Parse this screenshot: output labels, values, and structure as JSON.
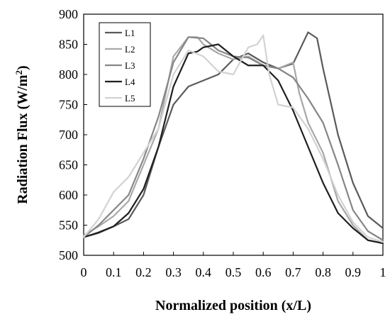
{
  "chart_data": {
    "type": "line",
    "title": "",
    "xlabel": "Normalized position (x/L)",
    "ylabel": "Radiation Flux (W/m²)",
    "ylabel_main": "Radiation Flux (W/m",
    "ylabel_sup": "2",
    "ylabel_close": ")",
    "xlim": [
      0,
      1
    ],
    "ylim": [
      500,
      900
    ],
    "x_ticks": [
      "0",
      "0.1",
      "0.2",
      "0.3",
      "0.4",
      "0.5",
      "0.6",
      "0.7",
      "0.8",
      "0.9",
      "1"
    ],
    "y_ticks": [
      "500",
      "550",
      "600",
      "650",
      "700",
      "750",
      "800",
      "850",
      "900"
    ],
    "grid": false,
    "legend_position": "top-left",
    "series": [
      {
        "name": "L1",
        "color": "#5a5a5a",
        "points": [
          [
            0,
            530
          ],
          [
            0.05,
            537
          ],
          [
            0.1,
            548
          ],
          [
            0.15,
            560
          ],
          [
            0.2,
            600
          ],
          [
            0.25,
            680
          ],
          [
            0.3,
            750
          ],
          [
            0.35,
            780
          ],
          [
            0.4,
            790
          ],
          [
            0.45,
            800
          ],
          [
            0.5,
            825
          ],
          [
            0.55,
            835
          ],
          [
            0.6,
            820
          ],
          [
            0.65,
            810
          ],
          [
            0.7,
            818
          ],
          [
            0.75,
            870
          ],
          [
            0.78,
            860
          ],
          [
            0.8,
            810
          ],
          [
            0.85,
            700
          ],
          [
            0.9,
            620
          ],
          [
            0.95,
            565
          ],
          [
            1,
            545
          ]
        ]
      },
      {
        "name": "L2",
        "color": "#a8a8a8",
        "points": [
          [
            0,
            533
          ],
          [
            0.05,
            548
          ],
          [
            0.1,
            565
          ],
          [
            0.15,
            590
          ],
          [
            0.2,
            650
          ],
          [
            0.25,
            710
          ],
          [
            0.3,
            830
          ],
          [
            0.35,
            862
          ],
          [
            0.38,
            862
          ],
          [
            0.4,
            850
          ],
          [
            0.45,
            835
          ],
          [
            0.5,
            825
          ],
          [
            0.55,
            830
          ],
          [
            0.6,
            815
          ],
          [
            0.65,
            810
          ],
          [
            0.7,
            820
          ],
          [
            0.72,
            770
          ],
          [
            0.75,
            720
          ],
          [
            0.8,
            670
          ],
          [
            0.85,
            590
          ],
          [
            0.9,
            550
          ],
          [
            0.95,
            525
          ],
          [
            1,
            520
          ]
        ]
      },
      {
        "name": "L3",
        "color": "#868686",
        "points": [
          [
            0,
            530
          ],
          [
            0.05,
            550
          ],
          [
            0.1,
            575
          ],
          [
            0.15,
            600
          ],
          [
            0.2,
            660
          ],
          [
            0.25,
            730
          ],
          [
            0.3,
            820
          ],
          [
            0.35,
            862
          ],
          [
            0.4,
            860
          ],
          [
            0.45,
            840
          ],
          [
            0.5,
            830
          ],
          [
            0.55,
            828
          ],
          [
            0.6,
            815
          ],
          [
            0.65,
            810
          ],
          [
            0.7,
            795
          ],
          [
            0.75,
            760
          ],
          [
            0.8,
            720
          ],
          [
            0.85,
            650
          ],
          [
            0.9,
            575
          ],
          [
            0.95,
            540
          ],
          [
            1,
            525
          ]
        ]
      },
      {
        "name": "L4",
        "color": "#1f1f1f",
        "points": [
          [
            0,
            530
          ],
          [
            0.05,
            538
          ],
          [
            0.1,
            548
          ],
          [
            0.15,
            570
          ],
          [
            0.2,
            610
          ],
          [
            0.25,
            680
          ],
          [
            0.3,
            780
          ],
          [
            0.35,
            835
          ],
          [
            0.38,
            838
          ],
          [
            0.4,
            845
          ],
          [
            0.45,
            850
          ],
          [
            0.5,
            830
          ],
          [
            0.55,
            815
          ],
          [
            0.6,
            815
          ],
          [
            0.65,
            790
          ],
          [
            0.7,
            740
          ],
          [
            0.75,
            680
          ],
          [
            0.8,
            620
          ],
          [
            0.85,
            570
          ],
          [
            0.9,
            545
          ],
          [
            0.95,
            525
          ],
          [
            1,
            520
          ]
        ]
      },
      {
        "name": "L5",
        "color": "#d2d2d2",
        "points": [
          [
            0,
            530
          ],
          [
            0.05,
            560
          ],
          [
            0.1,
            605
          ],
          [
            0.15,
            630
          ],
          [
            0.2,
            670
          ],
          [
            0.25,
            710
          ],
          [
            0.3,
            800
          ],
          [
            0.35,
            840
          ],
          [
            0.4,
            830
          ],
          [
            0.45,
            805
          ],
          [
            0.5,
            800
          ],
          [
            0.55,
            845
          ],
          [
            0.58,
            850
          ],
          [
            0.6,
            865
          ],
          [
            0.62,
            800
          ],
          [
            0.65,
            750
          ],
          [
            0.7,
            745
          ],
          [
            0.75,
            710
          ],
          [
            0.8,
            660
          ],
          [
            0.85,
            600
          ],
          [
            0.9,
            555
          ],
          [
            0.95,
            530
          ],
          [
            1,
            522
          ]
        ]
      }
    ]
  }
}
